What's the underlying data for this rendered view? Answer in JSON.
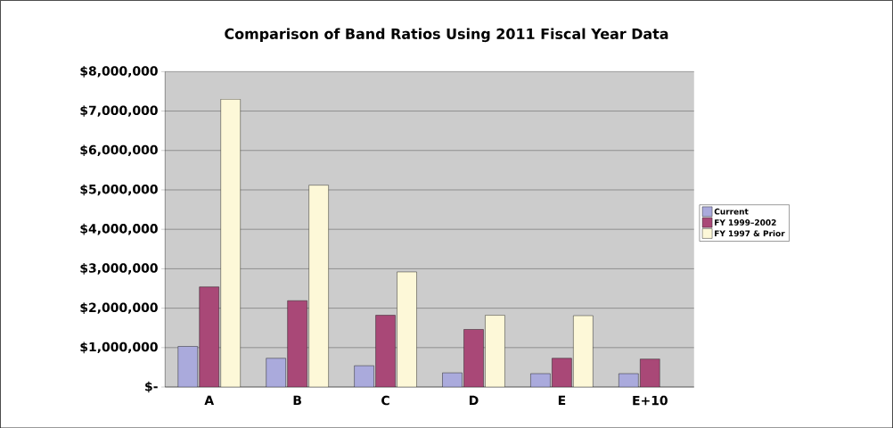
{
  "chart_data": {
    "type": "bar",
    "title": "Comparison of Band Ratios Using 2011 Fiscal Year Data",
    "categories": [
      "A",
      "B",
      "C",
      "D",
      "E",
      "E+10"
    ],
    "series": [
      {
        "name": "Current",
        "color": "#aaaadc",
        "values": [
          1030000,
          730000,
          540000,
          360000,
          340000,
          340000
        ]
      },
      {
        "name": "FY 1999–2002",
        "color": "#a94877",
        "values": [
          2540000,
          2190000,
          1820000,
          1460000,
          730000,
          710000
        ]
      },
      {
        "name": "FY 1997 & Prior",
        "color": "#fdf8d8",
        "values": [
          7300000,
          5120000,
          2920000,
          1820000,
          1810000,
          null
        ]
      }
    ],
    "ylim": [
      0,
      8000000
    ],
    "yticks": [
      {
        "value": 0,
        "label": "$-"
      },
      {
        "value": 1000000,
        "label": "$1,000,000"
      },
      {
        "value": 2000000,
        "label": "$2,000,000"
      },
      {
        "value": 3000000,
        "label": "$3,000,000"
      },
      {
        "value": 4000000,
        "label": "$4,000,000"
      },
      {
        "value": 5000000,
        "label": "$5,000,000"
      },
      {
        "value": 6000000,
        "label": "$6,000,000"
      },
      {
        "value": 7000000,
        "label": "$7,000,000"
      },
      {
        "value": 8000000,
        "label": "$8,000,000"
      }
    ],
    "grid": "y",
    "legend": "right"
  }
}
